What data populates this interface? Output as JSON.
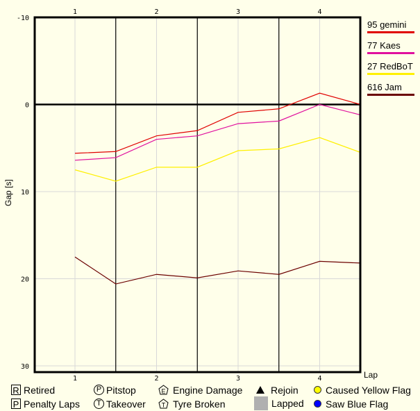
{
  "chart_data": {
    "type": "line",
    "title": "",
    "xlabel": "Lap",
    "ylabel": "Gap [s]",
    "ylim": [
      -10,
      30
    ],
    "y_inverted": true,
    "y_ticks": [
      -10,
      0,
      10,
      20,
      30
    ],
    "x_ticks": [
      1,
      2,
      3,
      4
    ],
    "grid": true,
    "legend_position": "right",
    "x": [
      1,
      1.5,
      2,
      2.5,
      3,
      3.5,
      4,
      4.5
    ],
    "series": [
      {
        "name": "95 gemini",
        "color": "#E00000",
        "values": [
          5.6,
          5.4,
          3.6,
          3.0,
          0.9,
          0.5,
          -1.3,
          0.0
        ]
      },
      {
        "name": "77 Kaes",
        "color": "#E0109E",
        "values": [
          6.4,
          6.1,
          4.0,
          3.6,
          2.2,
          1.9,
          0.0,
          1.2
        ]
      },
      {
        "name": "27 RedBoT",
        "color": "#FFF000",
        "values": [
          7.5,
          8.8,
          7.2,
          7.2,
          5.3,
          5.1,
          3.8,
          5.5
        ]
      },
      {
        "name": "616 Jam",
        "color": "#6B0000",
        "values": [
          17.5,
          20.6,
          19.5,
          19.9,
          19.1,
          19.5,
          18.0,
          18.2
        ]
      }
    ]
  },
  "axis": {
    "y_title": "Gap [s]",
    "x_title": "Lap",
    "y_tick_labels": [
      "-10",
      "0",
      "10",
      "20",
      "30"
    ],
    "x_tick_labels": [
      "1",
      "2",
      "3",
      "4"
    ]
  },
  "series_legend": [
    {
      "label": "95 gemini",
      "color": "#E00000"
    },
    {
      "label": "77 Kaes",
      "color": "#E0109E"
    },
    {
      "label": "27 RedBoT",
      "color": "#FFF000"
    },
    {
      "label": "616 Jam",
      "color": "#6B0000"
    }
  ],
  "symbol_legend": {
    "retired": {
      "symbol": "R",
      "label": "Retired"
    },
    "penalty": {
      "symbol": "P",
      "label": "Penalty Laps"
    },
    "pitstop": {
      "symbol": "P",
      "label": "Pitstop"
    },
    "takeover": {
      "symbol": "T",
      "label": "Takeover"
    },
    "engine": {
      "symbol": "E",
      "label": "Engine Damage"
    },
    "tyre": {
      "symbol": "T",
      "label": "Tyre Broken"
    },
    "rejoin": {
      "label": "Rejoin"
    },
    "lapped": {
      "label": "Lapped",
      "color": "#B0B0B0"
    },
    "yellow": {
      "label": "Caused Yellow Flag",
      "color": "#FFFF00"
    },
    "blue": {
      "label": "Saw Blue Flag",
      "color": "#0000FF"
    }
  }
}
